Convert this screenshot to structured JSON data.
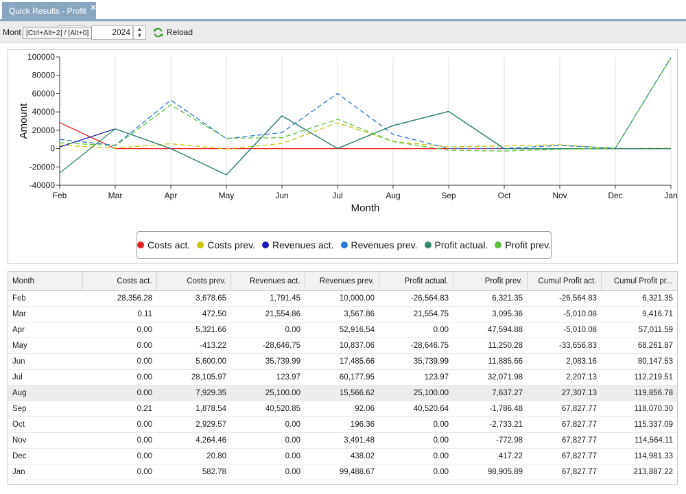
{
  "tab": {
    "title": "Quick Results - Profit",
    "close_glyph": "✕"
  },
  "toolbar": {
    "month_label": "Mont",
    "tooltip": "[Ctrl+Alt+2] / [Alt+0]",
    "year_value": "2024",
    "reload_label": "Reload",
    "reload_icon": "refresh-icon"
  },
  "chart_data": {
    "type": "line",
    "xlabel": "Month",
    "ylabel": "Amount",
    "categories": [
      "Feb",
      "Mar",
      "Apr",
      "May",
      "Jun",
      "Jul",
      "Aug",
      "Sep",
      "Oct",
      "Nov",
      "Dec",
      "Jan"
    ],
    "ylim": [
      -40000,
      100000
    ],
    "yticks": [
      -40000,
      -20000,
      0,
      20000,
      40000,
      60000,
      80000,
      100000
    ],
    "grid": "vertical",
    "legend": "bottom",
    "series": [
      {
        "name": "Costs act.",
        "color": "#e0201b",
        "dash": false,
        "values": [
          28356.28,
          0.11,
          0,
          0,
          0,
          0,
          0,
          0.21,
          0,
          0,
          0,
          0
        ]
      },
      {
        "name": "Costs prev.",
        "color": "#c9c300",
        "dash": true,
        "values": [
          3678.65,
          472.5,
          5321.66,
          -413.22,
          5600.0,
          28105.97,
          7929.35,
          1878.54,
          2929.57,
          4264.46,
          20.8,
          582.78
        ]
      },
      {
        "name": "Revenues act.",
        "color": "#1a1ab0",
        "dash": false,
        "values": [
          1791.45,
          21554.86,
          0,
          -28646.75,
          35739.99,
          123.97,
          25100.0,
          40520.85,
          0,
          0,
          0,
          0
        ]
      },
      {
        "name": "Revenues prev.",
        "color": "#2b77d6",
        "dash": true,
        "values": [
          10000.0,
          3567.86,
          52916.54,
          10837.06,
          17485.66,
          60177.95,
          15566.62,
          92.06,
          196.36,
          3491.48,
          438.02,
          99488.67
        ]
      },
      {
        "name": "Profit actual.",
        "color": "#2e8a6a",
        "dash": false,
        "values": [
          -26564.83,
          21554.75,
          0,
          -28646.75,
          35739.99,
          123.97,
          25100.0,
          40520.64,
          0,
          0,
          0,
          0
        ]
      },
      {
        "name": "Profit prev.",
        "color": "#58c23a",
        "dash": true,
        "values": [
          6321.35,
          3095.36,
          47594.88,
          11250.28,
          11885.66,
          32071.98,
          7637.27,
          -1786.48,
          -2733.21,
          -772.98,
          417.22,
          98905.89
        ]
      }
    ]
  },
  "table": {
    "columns": [
      "Month",
      "Costs act.",
      "Costs prev.",
      "Revenues act.",
      "Revenues prev.",
      "Profit actual.",
      "Profit prev.",
      "Cumul Profit act.",
      "Cumul Profit pr..."
    ],
    "selected_row": 6,
    "rows": [
      [
        "Feb",
        "28,356.28",
        "3,678.65",
        "1,791.45",
        "10,000.00",
        "-26,564.83",
        "6,321.35",
        "-26,564.83",
        "6,321.35"
      ],
      [
        "Mar",
        "0.11",
        "472.50",
        "21,554.86",
        "3,567.86",
        "21,554.75",
        "3,095.36",
        "-5,010.08",
        "9,416.71"
      ],
      [
        "Apr",
        "0.00",
        "5,321.66",
        "0.00",
        "52,916.54",
        "0.00",
        "47,594.88",
        "-5,010.08",
        "57,011.59"
      ],
      [
        "May",
        "0.00",
        "-413.22",
        "-28,646.75",
        "10,837.06",
        "-28,646.75",
        "11,250.28",
        "-33,656.83",
        "68,261.87"
      ],
      [
        "Jun",
        "0.00",
        "5,600.00",
        "35,739.99",
        "17,485.66",
        "35,739.99",
        "11,885.66",
        "2,083.16",
        "80,147.53"
      ],
      [
        "Jul",
        "0.00",
        "28,105.97",
        "123.97",
        "60,177.95",
        "123.97",
        "32,071.98",
        "2,207.13",
        "112,219.51"
      ],
      [
        "Aug",
        "0.00",
        "7,929.35",
        "25,100.00",
        "15,566.62",
        "25,100.00",
        "7,637.27",
        "27,307.13",
        "119,856.78"
      ],
      [
        "Sep",
        "0.21",
        "1,878.54",
        "40,520.85",
        "92.06",
        "40,520.64",
        "-1,786.48",
        "67,827.77",
        "118,070.30"
      ],
      [
        "Oct",
        "0.00",
        "2,929.57",
        "0.00",
        "196.36",
        "0.00",
        "-2,733.21",
        "67,827.77",
        "115,337.09"
      ],
      [
        "Nov",
        "0.00",
        "4,264.46",
        "0.00",
        "3,491.48",
        "0.00",
        "-772.98",
        "67,827.77",
        "114,564.11"
      ],
      [
        "Dec",
        "0.00",
        "20.80",
        "0.00",
        "438.02",
        "0.00",
        "417.22",
        "67,827.77",
        "114,981.33"
      ],
      [
        "Jan",
        "0.00",
        "582.78",
        "0.00",
        "99,488.67",
        "0.00",
        "98,905.89",
        "67,827.77",
        "213,887.22"
      ]
    ]
  }
}
